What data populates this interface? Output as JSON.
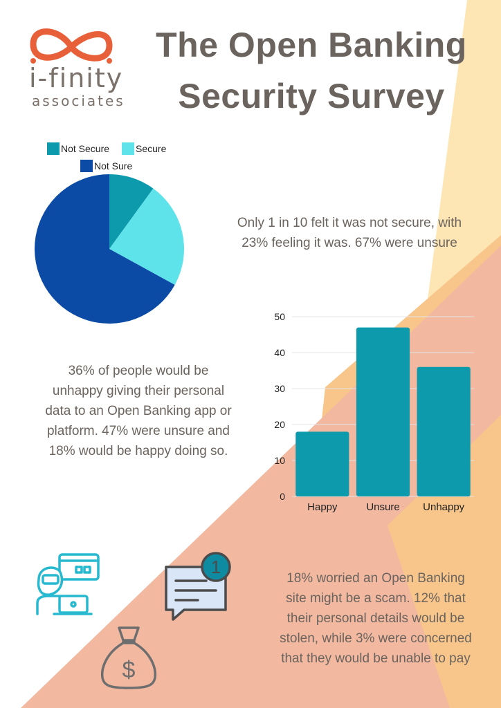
{
  "brand": {
    "wordmark": "i-finity",
    "tagline": "associates",
    "logo_color": "#e8603a"
  },
  "title": {
    "line1": "The Open Banking",
    "line2": "Security Survey"
  },
  "colors": {
    "teal": "#0e9aad",
    "cyan": "#5ee3ea",
    "navy": "#0b4ba6",
    "text": "#6b645e",
    "peach": "#f2b8a0",
    "orange": "#f8c68a",
    "cream": "#fde6b4"
  },
  "chart_data": [
    {
      "type": "pie",
      "legend": [
        "Not Secure",
        "Secure",
        "Not Sure"
      ],
      "categories": [
        "Not Secure",
        "Secure",
        "Not Sure"
      ],
      "values": [
        10,
        23,
        67
      ],
      "legend_placement": "top"
    },
    {
      "type": "bar",
      "categories": [
        "Happy",
        "Unsure",
        "Unhappy"
      ],
      "values": [
        18,
        47,
        36
      ],
      "ylim": [
        0,
        50
      ],
      "yticks": [
        0,
        10,
        20,
        30,
        40,
        50
      ],
      "grid": true
    }
  ],
  "notes": {
    "security": [
      "Only 1 in 10 felt it was not secure, with",
      "23% feeling it was. 67% were unsure"
    ],
    "personal_data": [
      "36% of people would be",
      "unhappy giving their personal",
      "data to an Open Banking app or",
      "platform. 47% were unsure and",
      "18% would be happy doing so."
    ],
    "worries": [
      "18% worried an Open Banking",
      "site might be a scam. 12% that",
      "their personal details would be",
      "stolen, while 3% were concerned",
      "that they would be unable to pay"
    ]
  },
  "icons": {
    "fraud": "hacker-card-icon",
    "message": "message-notification-icon",
    "money": "money-bag-icon",
    "badge_count": "1",
    "currency_symbol": "$"
  }
}
